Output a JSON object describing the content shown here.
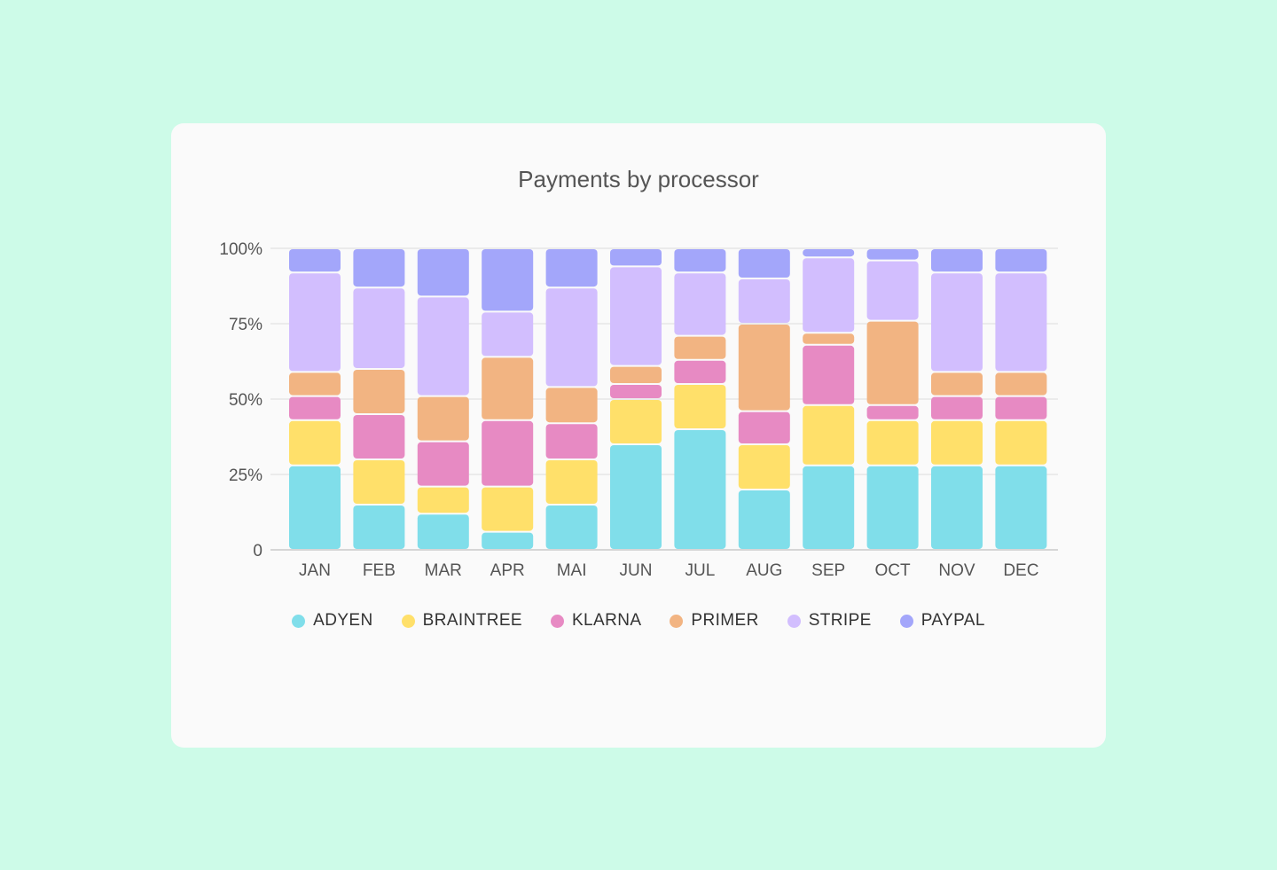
{
  "chart_data": {
    "type": "bar",
    "stacked": true,
    "title": "Payments by processor",
    "xlabel": "",
    "ylabel": "",
    "ylim": [
      0,
      100
    ],
    "yticks": [
      {
        "value": 0,
        "label": "0"
      },
      {
        "value": 25,
        "label": "25%"
      },
      {
        "value": 50,
        "label": "50%"
      },
      {
        "value": 75,
        "label": "75%"
      },
      {
        "value": 100,
        "label": "100%"
      }
    ],
    "grid": true,
    "legend": "bottom",
    "categories": [
      "JAN",
      "FEB",
      "MAR",
      "APR",
      "MAI",
      "JUN",
      "JUL",
      "AUG",
      "SEP",
      "OCT",
      "NOV",
      "DEC"
    ],
    "series": [
      {
        "name": "ADYEN",
        "color": "#80deea",
        "values": [
          28,
          15,
          12,
          6,
          15,
          35,
          40,
          20,
          28,
          28,
          28,
          28
        ]
      },
      {
        "name": "BRAINTREE",
        "color": "#ffe06a",
        "values": [
          15,
          15,
          9,
          15,
          15,
          15,
          15,
          15,
          20,
          15,
          15,
          15
        ]
      },
      {
        "name": "KLARNA",
        "color": "#e78ac3",
        "values": [
          8,
          15,
          15,
          22,
          12,
          5,
          8,
          11,
          20,
          5,
          8,
          8
        ]
      },
      {
        "name": "PRIMER",
        "color": "#f2b482",
        "values": [
          8,
          15,
          15,
          21,
          12,
          6,
          8,
          29,
          4,
          28,
          8,
          8
        ]
      },
      {
        "name": "STRIPE",
        "color": "#d2befe",
        "values": [
          33,
          27,
          33,
          15,
          33,
          33,
          21,
          15,
          25,
          20,
          33,
          33
        ]
      },
      {
        "name": "PAYPAL",
        "color": "#a3a6fa",
        "values": [
          8,
          13,
          16,
          21,
          13,
          6,
          8,
          10,
          3,
          4,
          8,
          8
        ]
      }
    ]
  }
}
